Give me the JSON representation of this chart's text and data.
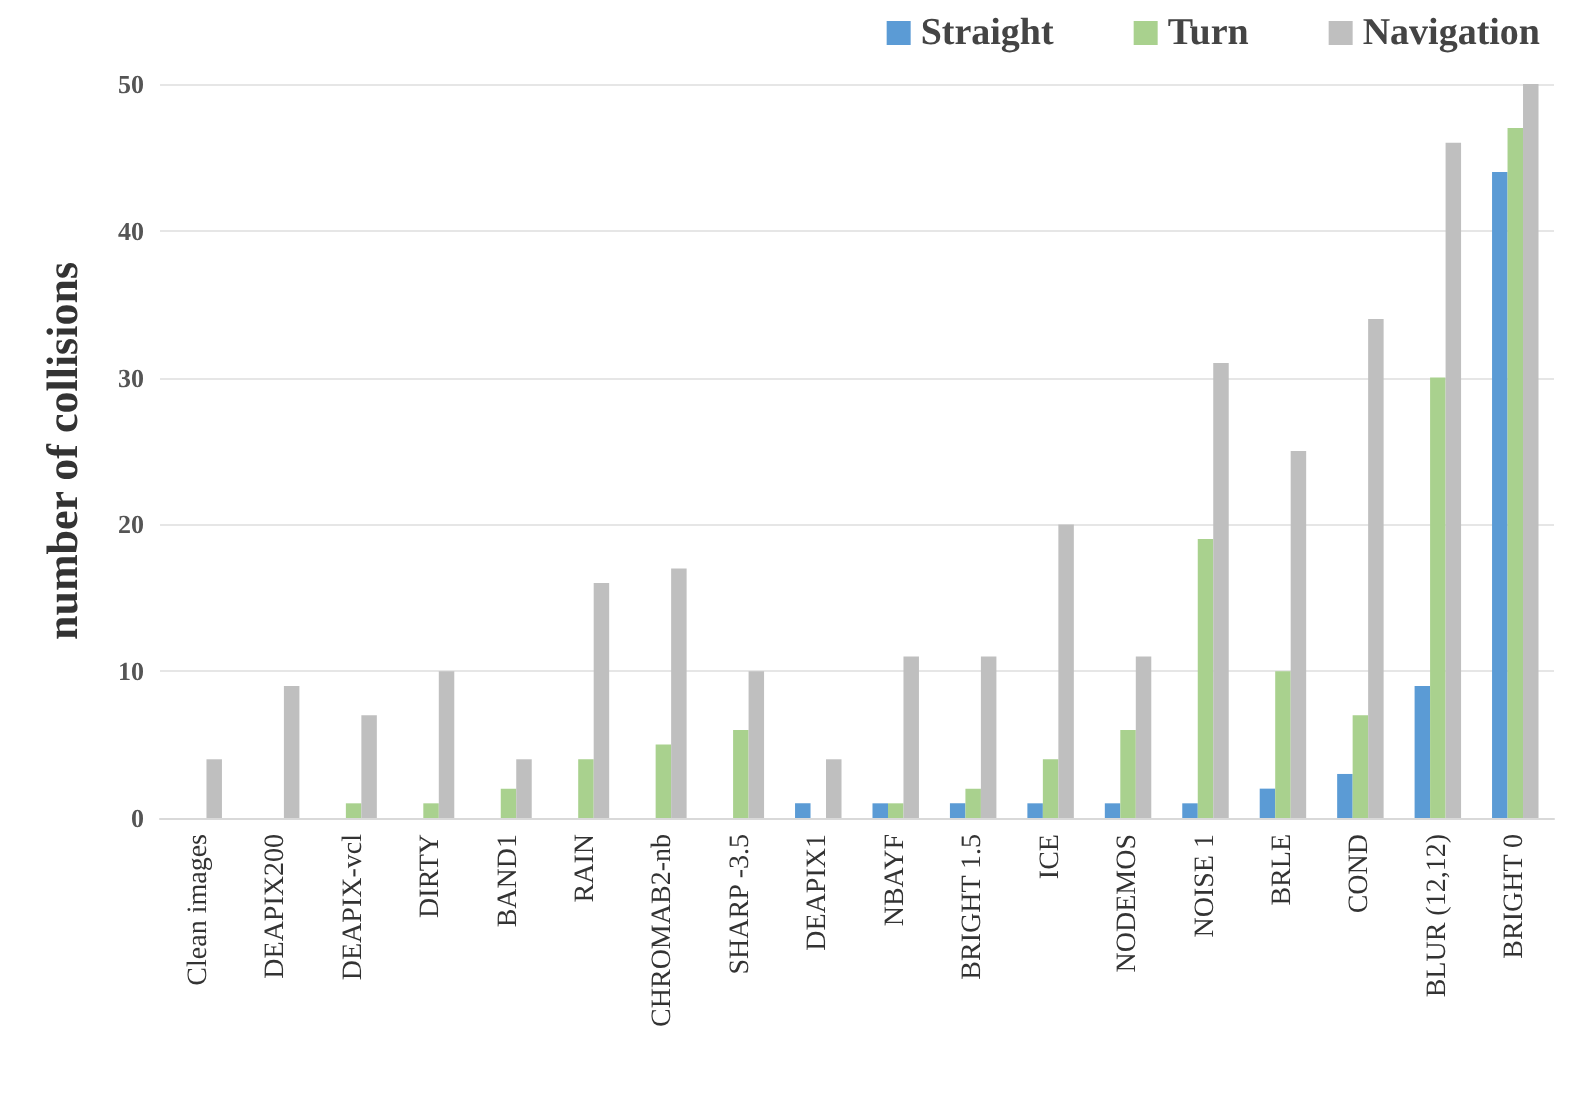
{
  "chart_data": {
    "type": "bar",
    "ylabel": "number of collisions",
    "categories": [
      "Clean images",
      "DEAPIX200",
      "DEAPIX-vcl",
      "DIRTY",
      "BAND1",
      "RAIN",
      "CHROMAB2-nb",
      "SHARP -3.5",
      "DEAPIX1",
      "NBAYF",
      "BRIGHT 1.5",
      "ICE",
      "NODEMOS",
      "NOISE 1",
      "BRLE",
      "COND",
      "BLUR (12,12)",
      "BRIGHT 0"
    ],
    "series": [
      {
        "name": "Straight",
        "color": "#5b9bd5",
        "values": [
          0,
          0,
          0,
          0,
          0,
          0,
          0,
          0,
          1,
          1,
          1,
          1,
          1,
          1,
          2,
          3,
          9,
          44
        ]
      },
      {
        "name": "Turn",
        "color": "#a9d18e",
        "values": [
          0,
          0,
          1,
          1,
          2,
          4,
          5,
          6,
          0,
          1,
          2,
          4,
          6,
          19,
          10,
          7,
          30,
          47
        ]
      },
      {
        "name": "Navigation",
        "color": "#bfbfbf",
        "values": [
          4,
          9,
          7,
          10,
          4,
          16,
          17,
          10,
          4,
          11,
          11,
          20,
          11,
          31,
          25,
          34,
          46,
          50
        ]
      }
    ],
    "ylim": [
      0,
      50
    ],
    "yticks": [
      0,
      10,
      20,
      30,
      40,
      50
    ],
    "grid": "y",
    "legend": "top right"
  }
}
